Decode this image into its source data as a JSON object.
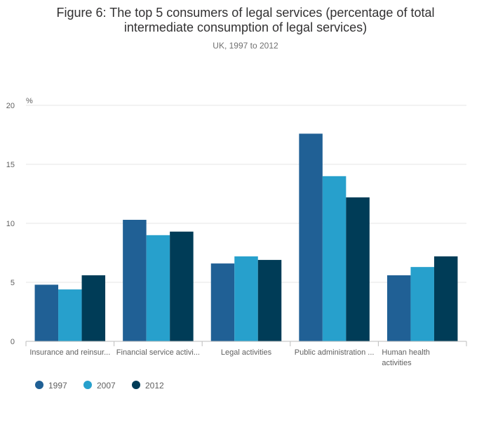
{
  "chart_data": {
    "type": "bar",
    "title": "Figure 6: The top 5 consumers of legal services (percentage of total intermediate consumption of legal services)",
    "title_lines": [
      "Figure 6: The top 5 consumers of legal services (percentage of total",
      "intermediate consumption of legal services)"
    ],
    "subtitle": "UK, 1997 to 2012",
    "ylabel": "%",
    "xlabel": "",
    "ylim": [
      0,
      20
    ],
    "yticks": [
      0,
      5,
      10,
      15,
      20
    ],
    "grid": true,
    "legend_position": "bottom-left",
    "categories": [
      "Insurance and reinsur...",
      "Financial service activi...",
      "Legal activities",
      "Public administration ...",
      "Human health activities"
    ],
    "category_label_lines": [
      [
        "Insurance and reinsur..."
      ],
      [
        "Financial service activi..."
      ],
      [
        "Legal activities"
      ],
      [
        "Public administration ..."
      ],
      [
        "Human health",
        "activities"
      ]
    ],
    "series": [
      {
        "name": "1997",
        "color": "#206095",
        "values": [
          4.8,
          10.3,
          6.6,
          17.6,
          5.6
        ]
      },
      {
        "name": "2007",
        "color": "#27a0cc",
        "values": [
          4.4,
          9.0,
          7.2,
          14.0,
          6.3
        ]
      },
      {
        "name": "2012",
        "color": "#003c57",
        "values": [
          5.6,
          9.3,
          6.9,
          12.2,
          7.2
        ]
      }
    ]
  }
}
